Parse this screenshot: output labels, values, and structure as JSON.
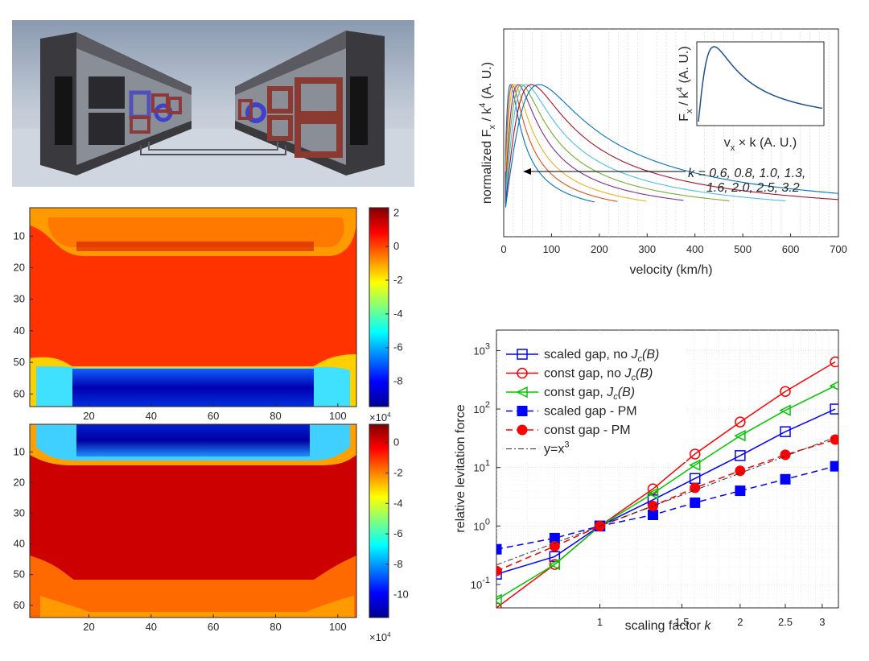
{
  "colors": {
    "series": [
      "#0000ff",
      "#ff0000",
      "#00c800",
      "#0000ff",
      "#ff0000",
      "#333333"
    ],
    "curve_palette": [
      "#0072BD",
      "#D95319",
      "#EDB120",
      "#7E2F8E",
      "#77AC30",
      "#4DBEEE",
      "#A2142F",
      "#0072BD"
    ]
  },
  "chart_data": [
    {
      "id": "render",
      "type": "image",
      "content": "3D rendering of two facing magnetic rail guideways with blue and red coils"
    },
    {
      "id": "velocity",
      "type": "line",
      "title": "",
      "xlabel": "velocity (km/h)",
      "ylabel_main": "normalized F",
      "ylabel_sub": "x",
      "ylabel_tail": " / k",
      "ylabel_sup": "4",
      "ylabel_unit": " (A. U.)",
      "xlim": [
        0,
        700
      ],
      "xticks": [
        0,
        100,
        200,
        300,
        400,
        500,
        600,
        700
      ],
      "k_values": [
        0.6,
        0.8,
        1.0,
        1.3,
        1.6,
        2.0,
        2.5,
        3.2
      ],
      "peak_velocities": [
        14,
        18,
        23,
        30,
        37,
        46,
        58,
        74
      ],
      "curve_ends": [
        190,
        238,
        298,
        376,
        472,
        590,
        700,
        700
      ],
      "annotation_line1": "k = 0.6, 0.8, 1.0, 1.3,",
      "annotation_line2": "1.6, 2.0, 2.5, 3.2",
      "inset": {
        "xlabel_main": "v",
        "xlabel_sub": "x",
        "xlabel_tail": " × k (A. U.)",
        "ylabel_main": "F",
        "ylabel_sub": "x",
        "ylabel_tail": " / k",
        "ylabel_sup": "4",
        "ylabel_unit": " (A. U.)"
      }
    },
    {
      "id": "heatmap-top",
      "type": "heatmap",
      "xlim": [
        1,
        106
      ],
      "ylim": [
        1,
        64
      ],
      "xticks": [
        20,
        40,
        60,
        80,
        100
      ],
      "yticks": [
        10,
        20,
        30,
        40,
        50,
        60
      ],
      "colorbar": {
        "range": [
          -9.5,
          2.3
        ],
        "ticks": [
          2,
          0,
          -2,
          -4,
          -6,
          -8
        ]
      }
    },
    {
      "id": "heatmap-bottom",
      "type": "heatmap",
      "xlim": [
        1,
        106
      ],
      "ylim": [
        1,
        64
      ],
      "xticks": [
        20,
        40,
        60,
        80,
        100
      ],
      "yticks": [
        10,
        20,
        30,
        40,
        50,
        60
      ],
      "colorbar": {
        "range": [
          -11.5,
          1.2
        ],
        "ticks": [
          0,
          -2,
          -4,
          -6,
          -8,
          -10
        ],
        "exponent_label": "×10",
        "exponent_sup": "4"
      },
      "bottom_exponent_label": "×10",
      "bottom_exponent_sup": "4"
    },
    {
      "id": "levitation",
      "type": "line",
      "scale": "log-log",
      "xlabel": "scaling factor ",
      "xlabel_italic": "k",
      "ylabel": "relative levitation force",
      "xlim": [
        0.6,
        3.25
      ],
      "ylim_exp": [
        -1.4,
        3.35
      ],
      "xtick_values": [
        1,
        1.5,
        2,
        2.5,
        3
      ],
      "xtick_labels": [
        "1",
        "1.5",
        "2",
        "2.5",
        "3"
      ],
      "ytick_exps": [
        -1,
        0,
        1,
        2,
        3
      ],
      "x": [
        0.6,
        0.8,
        1.0,
        1.3,
        1.6,
        2.0,
        2.5,
        3.2
      ],
      "series": [
        {
          "name": "scaled gap, no J_c(B)",
          "legend_pre": "scaled gap, no ",
          "legend_j": "J",
          "legend_sub": "c",
          "legend_post": "(B)",
          "values": [
            0.15,
            0.3,
            1.0,
            2.8,
            6.5,
            16,
            41,
            100
          ],
          "marker": "square-open",
          "dash": "solid"
        },
        {
          "name": "const gap, no J_c(B)",
          "legend_pre": "const gap, no ",
          "legend_j": "J",
          "legend_sub": "c",
          "legend_post": "(B)",
          "values": [
            0.04,
            0.22,
            1.0,
            4.3,
            17,
            60,
            200,
            640
          ],
          "marker": "circle-open",
          "dash": "solid"
        },
        {
          "name": "const gap, J_c(B)",
          "legend_pre": "const gap, ",
          "legend_j": "J",
          "legend_sub": "c",
          "legend_post": "(B)",
          "values": [
            0.055,
            0.22,
            1.0,
            3.6,
            11,
            35,
            95,
            250
          ],
          "marker": "triangle-open",
          "dash": "solid"
        },
        {
          "name": "scaled gap - PM",
          "legend_pre": "scaled gap - PM",
          "values": [
            0.4,
            0.62,
            1.0,
            1.55,
            2.5,
            4.0,
            6.3,
            10.5
          ],
          "marker": "square-filled",
          "dash": "dashed"
        },
        {
          "name": "const gap - PM",
          "legend_pre": "const gap - PM",
          "values": [
            0.17,
            0.45,
            1.0,
            2.2,
            4.5,
            8.8,
            16.5,
            30
          ],
          "marker": "circle-filled",
          "dash": "dashed"
        },
        {
          "name": "y=x^3",
          "legend_pre": "y=x",
          "legend_sup": "3",
          "values": [
            0.216,
            0.512,
            1.0,
            2.197,
            4.096,
            8.0,
            15.625,
            32.768
          ],
          "marker": "none",
          "dash": "dashdot"
        }
      ]
    }
  ]
}
